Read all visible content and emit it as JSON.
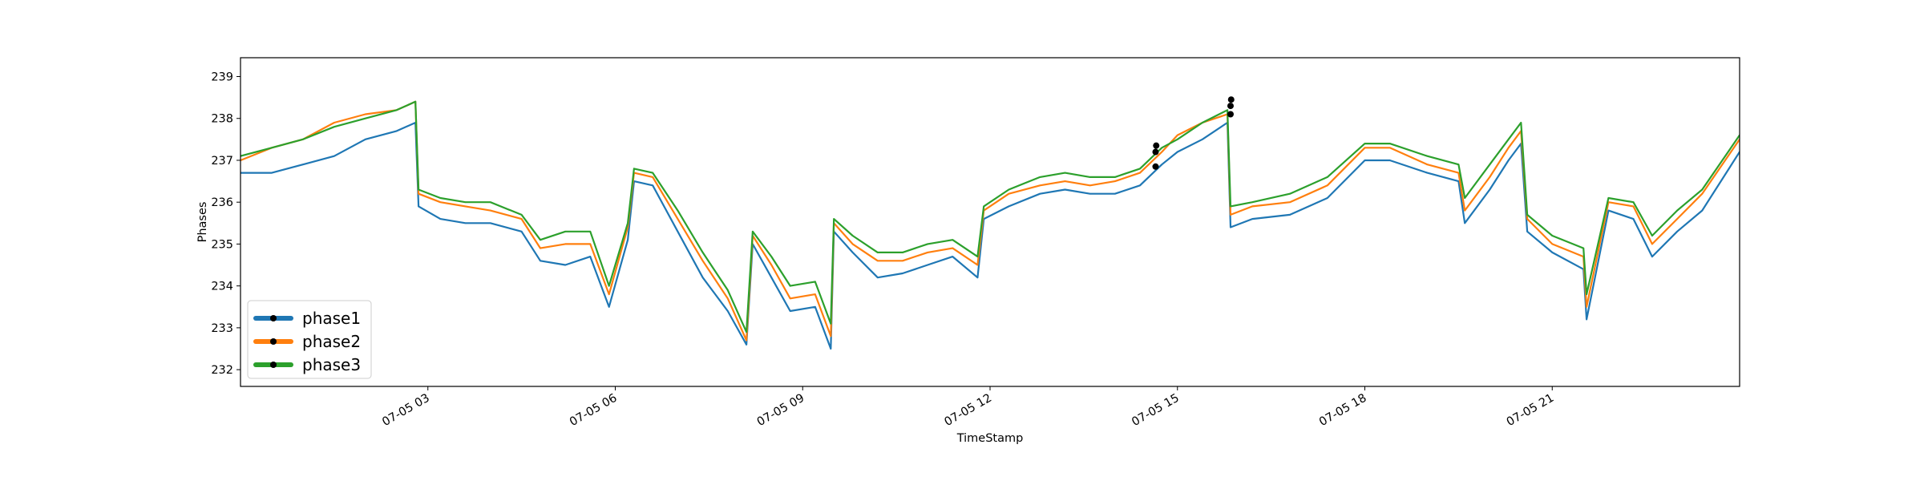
{
  "chart_data": {
    "type": "line",
    "title": "",
    "xlabel": "TimeStamp",
    "ylabel": "Phases",
    "x_unit": "hours on 07-05",
    "xlim": [
      0,
      24
    ],
    "ylim": [
      231.6,
      239.45
    ],
    "grid": false,
    "legend_placement": "lower-left",
    "x_ticks": [
      {
        "x": 3,
        "label": "07-05 03"
      },
      {
        "x": 6,
        "label": "07-05 06"
      },
      {
        "x": 9,
        "label": "07-05 09"
      },
      {
        "x": 12,
        "label": "07-05 12"
      },
      {
        "x": 15,
        "label": "07-05 15"
      },
      {
        "x": 18,
        "label": "07-05 18"
      },
      {
        "x": 21,
        "label": "07-05 21"
      }
    ],
    "y_ticks": [
      232,
      233,
      234,
      235,
      236,
      237,
      238,
      239
    ],
    "x": [
      0,
      0.5,
      1.0,
      1.5,
      2.0,
      2.5,
      2.8,
      2.85,
      3.2,
      3.6,
      4.0,
      4.5,
      4.8,
      5.2,
      5.6,
      5.9,
      6.2,
      6.3,
      6.6,
      7.0,
      7.4,
      7.8,
      8.1,
      8.2,
      8.5,
      8.8,
      9.2,
      9.45,
      9.5,
      9.8,
      10.2,
      10.6,
      11.0,
      11.4,
      11.8,
      11.9,
      12.3,
      12.8,
      13.2,
      13.6,
      14.0,
      14.4,
      14.75,
      15.0,
      15.4,
      15.8,
      15.85,
      16.2,
      16.8,
      17.4,
      18.0,
      18.4,
      19.0,
      19.5,
      19.6,
      20.0,
      20.3,
      20.5,
      20.6,
      21.0,
      21.5,
      21.55,
      21.9,
      22.3,
      22.6,
      23.0,
      23.4,
      24.0
    ],
    "series": [
      {
        "name": "phase1",
        "color": "#1f77b4",
        "values": [
          236.7,
          236.7,
          236.9,
          237.1,
          237.5,
          237.7,
          237.9,
          235.9,
          235.6,
          235.5,
          235.5,
          235.3,
          234.6,
          234.5,
          234.7,
          233.5,
          235.1,
          236.5,
          236.4,
          235.3,
          234.2,
          233.4,
          232.6,
          235.0,
          234.2,
          233.4,
          233.5,
          232.5,
          235.3,
          234.8,
          234.2,
          234.3,
          234.5,
          234.7,
          234.2,
          235.6,
          235.9,
          236.2,
          236.3,
          236.2,
          236.2,
          236.4,
          236.9,
          237.2,
          237.5,
          237.9,
          235.4,
          235.6,
          235.7,
          236.1,
          237.0,
          237.0,
          236.7,
          236.5,
          235.5,
          236.3,
          237.0,
          237.4,
          235.3,
          234.8,
          234.4,
          233.2,
          235.8,
          235.6,
          234.7,
          235.3,
          235.8,
          237.2
        ]
      },
      {
        "name": "phase2",
        "color": "#ff7f0e",
        "values": [
          237.0,
          237.3,
          237.5,
          237.9,
          238.1,
          238.2,
          238.4,
          236.2,
          236.0,
          235.9,
          235.8,
          235.6,
          234.9,
          235.0,
          235.0,
          233.8,
          235.4,
          236.7,
          236.6,
          235.6,
          234.6,
          233.7,
          232.7,
          235.2,
          234.5,
          233.7,
          233.8,
          232.8,
          235.5,
          235.0,
          234.6,
          234.6,
          234.8,
          234.9,
          234.5,
          235.8,
          236.2,
          236.4,
          236.5,
          236.4,
          236.5,
          236.7,
          237.2,
          237.6,
          237.9,
          238.1,
          235.7,
          235.9,
          236.0,
          236.4,
          237.3,
          237.3,
          236.9,
          236.7,
          235.8,
          236.6,
          237.3,
          237.7,
          235.6,
          235.0,
          234.7,
          233.5,
          236.0,
          235.9,
          235.0,
          235.6,
          236.2,
          237.5
        ]
      },
      {
        "name": "phase3",
        "color": "#2ca02c",
        "values": [
          237.1,
          237.3,
          237.5,
          237.8,
          238.0,
          238.2,
          238.4,
          236.3,
          236.1,
          236.0,
          236.0,
          235.7,
          235.1,
          235.3,
          235.3,
          234.0,
          235.5,
          236.8,
          236.7,
          235.8,
          234.8,
          233.9,
          232.9,
          235.3,
          234.7,
          234.0,
          234.1,
          233.1,
          235.6,
          235.2,
          234.8,
          234.8,
          235.0,
          235.1,
          234.7,
          235.9,
          236.3,
          236.6,
          236.7,
          236.6,
          236.6,
          236.8,
          237.3,
          237.5,
          237.9,
          238.2,
          235.9,
          236.0,
          236.2,
          236.6,
          237.4,
          237.4,
          237.1,
          236.9,
          236.1,
          236.9,
          237.5,
          237.9,
          235.7,
          235.2,
          234.9,
          233.8,
          236.1,
          236.0,
          235.2,
          235.8,
          236.3,
          237.6
        ]
      }
    ],
    "markers": [
      {
        "x": 14.65,
        "y": 236.85
      },
      {
        "x": 14.65,
        "y": 237.2
      },
      {
        "x": 14.66,
        "y": 237.35
      },
      {
        "x": 15.85,
        "y": 238.1
      },
      {
        "x": 15.85,
        "y": 238.3
      },
      {
        "x": 15.86,
        "y": 238.45
      }
    ]
  }
}
